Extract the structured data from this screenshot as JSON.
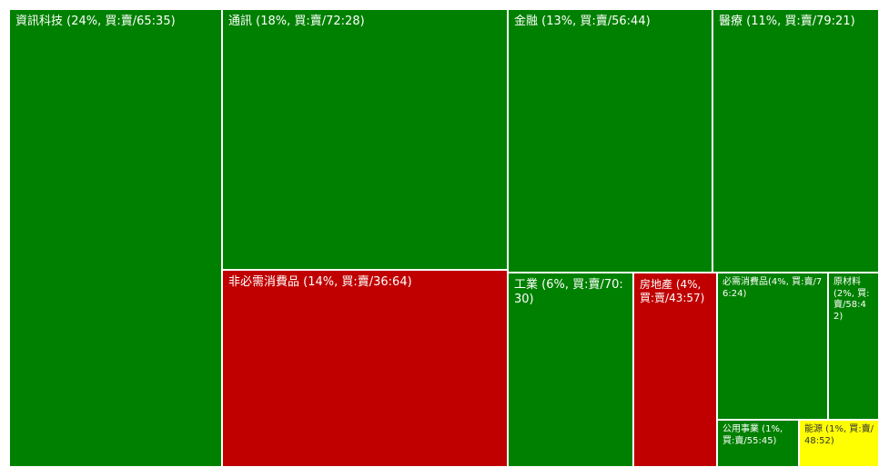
{
  "colors": {
    "buy": "#008000",
    "sell": "#c00000",
    "neutral": "#ffff00",
    "border": "#ffffff",
    "label_on_dark": "#ffffff",
    "label_on_light": "#333333"
  },
  "chart_data": {
    "type": "treemap",
    "title": "",
    "legend": "none",
    "items": [
      {
        "sector": "資訊科技",
        "weight_pct": 24,
        "buy": 65,
        "sell": 35,
        "label": "資訊科技 (24%, 買:賣/65:35)"
      },
      {
        "sector": "通訊",
        "weight_pct": 18,
        "buy": 72,
        "sell": 28,
        "label": "通訊 (18%, 買:賣/72:28)"
      },
      {
        "sector": "金融",
        "weight_pct": 13,
        "buy": 56,
        "sell": 44,
        "label": "金融 (13%, 買:賣/56:44)"
      },
      {
        "sector": "醫療",
        "weight_pct": 11,
        "buy": 79,
        "sell": 21,
        "label": "醫療 (11%, 買:賣/79:21)"
      },
      {
        "sector": "非必需消費品",
        "weight_pct": 14,
        "buy": 36,
        "sell": 64,
        "label": "非必需消費品 (14%, 買:賣/36:64)"
      },
      {
        "sector": "工業",
        "weight_pct": 6,
        "buy": 70,
        "sell": 30,
        "label": "工業 (6%, 買:賣/70:30)"
      },
      {
        "sector": "房地產",
        "weight_pct": 4,
        "buy": 43,
        "sell": 57,
        "label": "房地產 (4%, 買:賣/43:57)"
      },
      {
        "sector": "必需消費品",
        "weight_pct": 4,
        "buy": 76,
        "sell": 24,
        "label": "必需消費品(4%, 買:賣/76:24)"
      },
      {
        "sector": "原材料",
        "weight_pct": 2,
        "buy": 58,
        "sell": 42,
        "label": "原材料 (2%, 買:賣/58:42)"
      },
      {
        "sector": "公用事業",
        "weight_pct": 1,
        "buy": 55,
        "sell": 45,
        "label": "公用事業 (1%, 買:賣/55:45)"
      },
      {
        "sector": "能源",
        "weight_pct": 1,
        "buy": 48,
        "sell": 52,
        "label": "能源 (1%, 買:賣/48:52)"
      }
    ]
  }
}
